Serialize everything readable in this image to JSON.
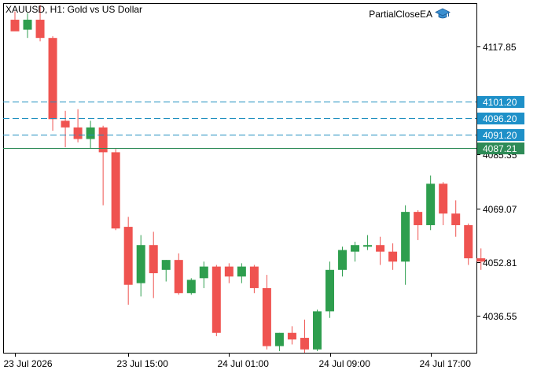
{
  "header": {
    "symbol": "XAUUSD, H1:  Gold vs US Dollar",
    "ea_name": "PartialCloseEA",
    "ea_icon": "graduation-cap-icon"
  },
  "colors": {
    "bull": "#26a69a",
    "bull_fill": "#2e9e4e",
    "bear": "#ef5350",
    "line_level": "#1f8fbf",
    "price_tag": "#1e90c8",
    "current_tag": "#2e8b57",
    "frame": "#000000"
  },
  "chart_data": {
    "type": "candlestick",
    "timeframe": "H1",
    "ylim": [
      4025.5,
      4131.0
    ],
    "y_ticks": [
      4117.85,
      4101.2,
      4085.35,
      4069.07,
      4052.81,
      4036.55
    ],
    "y_tick_labels": [
      "4117.85",
      "4085.35",
      "4069.07",
      "4052.81",
      "4036.55"
    ],
    "x_ticks": [
      {
        "index": 0,
        "label": "23 Jul 2026"
      },
      {
        "index": 9,
        "label": "23 Jul 15:00"
      },
      {
        "index": 17,
        "label": "24 Jul 01:00"
      },
      {
        "index": 25,
        "label": "24 Jul 09:00"
      },
      {
        "index": 33,
        "label": "24 Jul 17:00"
      }
    ],
    "candles": [
      {
        "o": 4126.0,
        "h": 4128.5,
        "l": 4123.5,
        "c": 4122.5
      },
      {
        "o": 4123.0,
        "h": 4128.0,
        "l": 4120.5,
        "c": 4126.0
      },
      {
        "o": 4126.0,
        "h": 4130.5,
        "l": 4119.5,
        "c": 4120.5
      },
      {
        "o": 4120.5,
        "h": 4121.0,
        "l": 4092.5,
        "c": 4096.0
      },
      {
        "o": 4095.5,
        "h": 4098.5,
        "l": 4087.5,
        "c": 4093.5
      },
      {
        "o": 4093.5,
        "h": 4099.0,
        "l": 4089.0,
        "c": 4090.0
      },
      {
        "o": 4090.0,
        "h": 4095.5,
        "l": 4087.0,
        "c": 4093.5
      },
      {
        "o": 4093.5,
        "h": 4094.0,
        "l": 4070.0,
        "c": 4086.0
      },
      {
        "o": 4086.0,
        "h": 4087.0,
        "l": 4062.5,
        "c": 4063.0
      },
      {
        "o": 4063.5,
        "h": 4066.5,
        "l": 4040.0,
        "c": 4046.0
      },
      {
        "o": 4046.5,
        "h": 4061.0,
        "l": 4042.5,
        "c": 4058.0
      },
      {
        "o": 4058.0,
        "h": 4062.0,
        "l": 4042.0,
        "c": 4049.5
      },
      {
        "o": 4050.5,
        "h": 4053.5,
        "l": 4047.0,
        "c": 4053.5
      },
      {
        "o": 4053.5,
        "h": 4055.5,
        "l": 4043.0,
        "c": 4043.5
      },
      {
        "o": 4043.5,
        "h": 4048.0,
        "l": 4043.0,
        "c": 4047.5
      },
      {
        "o": 4048.0,
        "h": 4053.0,
        "l": 4045.0,
        "c": 4051.5
      },
      {
        "o": 4051.5,
        "h": 4052.0,
        "l": 4030.5,
        "c": 4031.5
      },
      {
        "o": 4051.5,
        "h": 4052.5,
        "l": 4046.5,
        "c": 4048.5
      },
      {
        "o": 4048.5,
        "h": 4052.5,
        "l": 4046.5,
        "c": 4051.5
      },
      {
        "o": 4051.5,
        "h": 4052.0,
        "l": 4043.5,
        "c": 4045.0
      },
      {
        "o": 4045.0,
        "h": 4049.0,
        "l": 4026.5,
        "c": 4027.5
      },
      {
        "o": 4027.5,
        "h": 4031.5,
        "l": 4026.0,
        "c": 4031.5
      },
      {
        "o": 4031.5,
        "h": 4033.5,
        "l": 4028.0,
        "c": 4029.5
      },
      {
        "o": 4030.0,
        "h": 4035.5,
        "l": 4025.5,
        "c": 4026.5
      },
      {
        "o": 4026.5,
        "h": 4038.5,
        "l": 4026.0,
        "c": 4038.0
      },
      {
        "o": 4038.0,
        "h": 4053.0,
        "l": 4036.0,
        "c": 4050.5
      },
      {
        "o": 4050.5,
        "h": 4057.5,
        "l": 4048.5,
        "c": 4056.5
      },
      {
        "o": 4056.0,
        "h": 4059.0,
        "l": 4053.0,
        "c": 4058.0
      },
      {
        "o": 4057.5,
        "h": 4061.0,
        "l": 4056.5,
        "c": 4058.0
      },
      {
        "o": 4058.0,
        "h": 4060.5,
        "l": 4052.0,
        "c": 4056.0
      },
      {
        "o": 4056.0,
        "h": 4058.5,
        "l": 4050.5,
        "c": 4053.0
      },
      {
        "o": 4053.0,
        "h": 4070.0,
        "l": 4046.0,
        "c": 4068.0
      },
      {
        "o": 4068.0,
        "h": 4068.5,
        "l": 4059.5,
        "c": 4064.0
      },
      {
        "o": 4064.0,
        "h": 4079.0,
        "l": 4062.5,
        "c": 4076.5
      },
      {
        "o": 4076.5,
        "h": 4077.0,
        "l": 4064.0,
        "c": 4067.5
      },
      {
        "o": 4067.5,
        "h": 4071.5,
        "l": 4060.5,
        "c": 4064.0
      },
      {
        "o": 4064.0,
        "h": 4064.5,
        "l": 4052.0,
        "c": 4054.0
      },
      {
        "o": 4054.0,
        "h": 4057.0,
        "l": 4050.5,
        "c": 4053.0
      }
    ],
    "levels": [
      {
        "price": 4101.2,
        "label": "4101.20",
        "style": "dashed"
      },
      {
        "price": 4096.2,
        "label": "4096.20",
        "style": "dashed"
      },
      {
        "price": 4091.2,
        "label": "4091.20",
        "style": "dashed"
      },
      {
        "price": 4087.21,
        "label": "4087.21",
        "style": "solid",
        "current": true
      }
    ]
  }
}
